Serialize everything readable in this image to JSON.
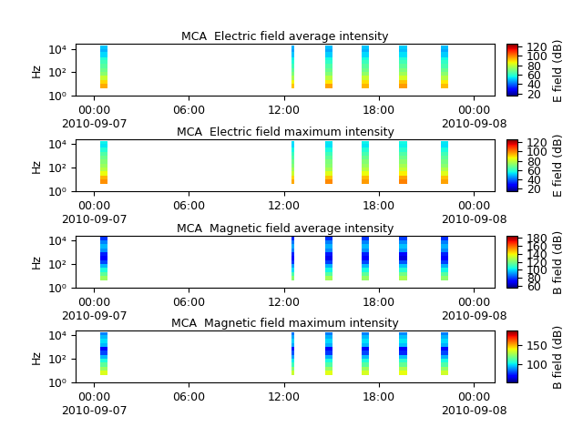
{
  "chart_data": [
    {
      "type": "heatmap",
      "title": "MCA  Electric field average intensity",
      "y_label": "Hz",
      "log": "y",
      "xlim": [
        -1.15,
        25.3
      ],
      "xticks": [
        {
          "value": 0,
          "label": "00:00\n2010-09-07"
        },
        {
          "value": 6,
          "label": "06:00"
        },
        {
          "value": 12,
          "label": "12:00"
        },
        {
          "value": 18,
          "label": "18:00"
        },
        {
          "value": 24,
          "label": "00:00\n2010-09-08"
        }
      ],
      "ylim": [
        1,
        25000
      ],
      "yticks": [
        {
          "value": 1,
          "label": "10⁰"
        },
        {
          "value": 100,
          "label": "10²"
        },
        {
          "value": 10000,
          "label": "10⁴"
        }
      ],
      "passes": [
        [
          0.4,
          0.86
        ],
        [
          12.47,
          12.64
        ],
        [
          14.6,
          15.06
        ],
        [
          16.9,
          17.36
        ],
        [
          19.3,
          19.77
        ],
        [
          21.9,
          22.36
        ]
      ],
      "y_edges": [
        4,
        10,
        20,
        50,
        100,
        200,
        500,
        1000,
        2000,
        5000,
        10000,
        20000
      ],
      "cells": [
        [
          95,
          92,
          96,
          94,
          97,
          93
        ],
        [
          90,
          86,
          88,
          89,
          92,
          88
        ],
        [
          80,
          76,
          78,
          80,
          82,
          78
        ],
        [
          72,
          70,
          71,
          73,
          75,
          72
        ],
        [
          68,
          66,
          67,
          68,
          70,
          67
        ],
        [
          65,
          62,
          64,
          65,
          66,
          63
        ],
        [
          62,
          58,
          60,
          61,
          62,
          60
        ],
        [
          58,
          55,
          56,
          57,
          58,
          56
        ],
        [
          52,
          50,
          51,
          52,
          53,
          51
        ],
        [
          48,
          46,
          47,
          48,
          49,
          47
        ],
        [
          50,
          48,
          49,
          50,
          51,
          49
        ]
      ],
      "colorbar_label": "E field (dB)",
      "colorbar_range": [
        15,
        125
      ],
      "colorbar_ticks": [
        20,
        40,
        60,
        80,
        100,
        120
      ]
    },
    {
      "type": "heatmap",
      "title": "MCA  Electric field maximum intensity",
      "y_label": "Hz",
      "log": "y",
      "xlim": [
        -1.15,
        25.3
      ],
      "xticks": [
        {
          "value": 0,
          "label": "00:00\n2010-09-07"
        },
        {
          "value": 6,
          "label": "06:00"
        },
        {
          "value": 12,
          "label": "12:00"
        },
        {
          "value": 18,
          "label": "18:00"
        },
        {
          "value": 24,
          "label": "00:00\n2010-09-08"
        }
      ],
      "ylim": [
        1,
        25000
      ],
      "yticks": [
        {
          "value": 1,
          "label": "10⁰"
        },
        {
          "value": 100,
          "label": "10²"
        },
        {
          "value": 10000,
          "label": "10⁴"
        }
      ],
      "passes": [
        [
          0.4,
          0.86
        ],
        [
          12.47,
          12.64
        ],
        [
          14.6,
          15.06
        ],
        [
          16.9,
          17.36
        ],
        [
          19.3,
          19.77
        ],
        [
          21.9,
          22.36
        ]
      ],
      "y_edges": [
        4,
        10,
        20,
        50,
        100,
        200,
        500,
        1000,
        2000,
        5000,
        10000,
        20000
      ],
      "cells": [
        [
          98,
          95,
          99,
          97,
          100,
          96
        ],
        [
          94,
          90,
          92,
          93,
          96,
          92
        ],
        [
          85,
          80,
          83,
          85,
          87,
          83
        ],
        [
          78,
          75,
          76,
          78,
          80,
          77
        ],
        [
          74,
          71,
          72,
          74,
          76,
          72
        ],
        [
          71,
          68,
          70,
          71,
          72,
          69
        ],
        [
          68,
          64,
          66,
          67,
          68,
          66
        ],
        [
          64,
          61,
          62,
          63,
          64,
          62
        ],
        [
          58,
          56,
          57,
          58,
          59,
          57
        ],
        [
          54,
          52,
          53,
          54,
          55,
          53
        ],
        [
          55,
          53,
          54,
          55,
          56,
          54
        ]
      ],
      "colorbar_label": "E field (dB)",
      "colorbar_range": [
        15,
        125
      ],
      "colorbar_ticks": [
        20,
        40,
        60,
        80,
        100,
        120
      ]
    },
    {
      "type": "heatmap",
      "title": "MCA  Magnetic field average intensity",
      "y_label": "Hz",
      "log": "y",
      "xlim": [
        -1.15,
        25.3
      ],
      "xticks": [
        {
          "value": 0,
          "label": "00:00\n2010-09-07"
        },
        {
          "value": 6,
          "label": "06:00"
        },
        {
          "value": 12,
          "label": "12:00"
        },
        {
          "value": 18,
          "label": "18:00"
        },
        {
          "value": 24,
          "label": "00:00\n2010-09-08"
        }
      ],
      "ylim": [
        1,
        25000
      ],
      "yticks": [
        {
          "value": 1,
          "label": "10⁰"
        },
        {
          "value": 100,
          "label": "10²"
        },
        {
          "value": 10000,
          "label": "10⁴"
        }
      ],
      "passes": [
        [
          0.4,
          0.86
        ],
        [
          12.47,
          12.64
        ],
        [
          14.6,
          15.06
        ],
        [
          16.9,
          17.36
        ],
        [
          19.3,
          19.77
        ],
        [
          21.9,
          22.36
        ]
      ],
      "y_edges": [
        4,
        10,
        20,
        50,
        100,
        200,
        500,
        1000,
        2000,
        5000,
        10000,
        20000
      ],
      "cells": [
        [
          125,
          122,
          126,
          124,
          127,
          123
        ],
        [
          115,
          112,
          114,
          115,
          118,
          114
        ],
        [
          105,
          100,
          103,
          104,
          106,
          103
        ],
        [
          95,
          92,
          94,
          95,
          97,
          94
        ],
        [
          80,
          78,
          79,
          80,
          82,
          79
        ],
        [
          70,
          72,
          68,
          70,
          66,
          70
        ],
        [
          75,
          76,
          74,
          75,
          72,
          75
        ],
        [
          90,
          88,
          89,
          90,
          91,
          89
        ],
        [
          95,
          93,
          94,
          95,
          96,
          94
        ],
        [
          88,
          86,
          87,
          88,
          89,
          87
        ],
        [
          78,
          76,
          77,
          78,
          79,
          77
        ]
      ],
      "colorbar_label": "B field (dB)",
      "colorbar_range": [
        55,
        185
      ],
      "colorbar_ticks": [
        60,
        80,
        100,
        120,
        140,
        160,
        180
      ]
    },
    {
      "type": "heatmap",
      "title": "MCA  Magnetic field maximum intensity",
      "y_label": "Hz",
      "log": "y",
      "xlim": [
        -1.15,
        25.3
      ],
      "xticks": [
        {
          "value": 0,
          "label": "00:00\n2010-09-07"
        },
        {
          "value": 6,
          "label": "06:00"
        },
        {
          "value": 12,
          "label": "12:00"
        },
        {
          "value": 18,
          "label": "18:00"
        },
        {
          "value": 24,
          "label": "00:00\n2010-09-08"
        }
      ],
      "ylim": [
        1,
        25000
      ],
      "yticks": [
        {
          "value": 1,
          "label": "10⁰"
        },
        {
          "value": 100,
          "label": "10²"
        },
        {
          "value": 10000,
          "label": "10⁴"
        }
      ],
      "passes": [
        [
          0.4,
          0.86
        ],
        [
          12.47,
          12.64
        ],
        [
          14.6,
          15.06
        ],
        [
          16.9,
          17.36
        ],
        [
          19.3,
          19.77
        ],
        [
          21.9,
          22.36
        ]
      ],
      "y_edges": [
        4,
        10,
        20,
        50,
        100,
        200,
        500,
        1000,
        2000,
        5000,
        10000,
        20000
      ],
      "cells": [
        [
          135,
          132,
          136,
          134,
          137,
          133
        ],
        [
          125,
          122,
          124,
          125,
          128,
          124
        ],
        [
          115,
          110,
          113,
          114,
          116,
          113
        ],
        [
          105,
          102,
          104,
          105,
          107,
          104
        ],
        [
          95,
          92,
          94,
          95,
          96,
          94
        ],
        [
          80,
          82,
          78,
          80,
          76,
          80
        ],
        [
          72,
          74,
          70,
          72,
          70,
          72
        ],
        [
          95,
          93,
          94,
          95,
          96,
          94
        ],
        [
          100,
          98,
          99,
          100,
          101,
          99
        ],
        [
          95,
          93,
          94,
          95,
          96,
          94
        ],
        [
          88,
          86,
          87,
          88,
          89,
          87
        ]
      ],
      "colorbar_label": "B field (dB)",
      "colorbar_range": [
        55,
        185
      ],
      "colorbar_ticks": [
        100,
        150
      ]
    }
  ]
}
